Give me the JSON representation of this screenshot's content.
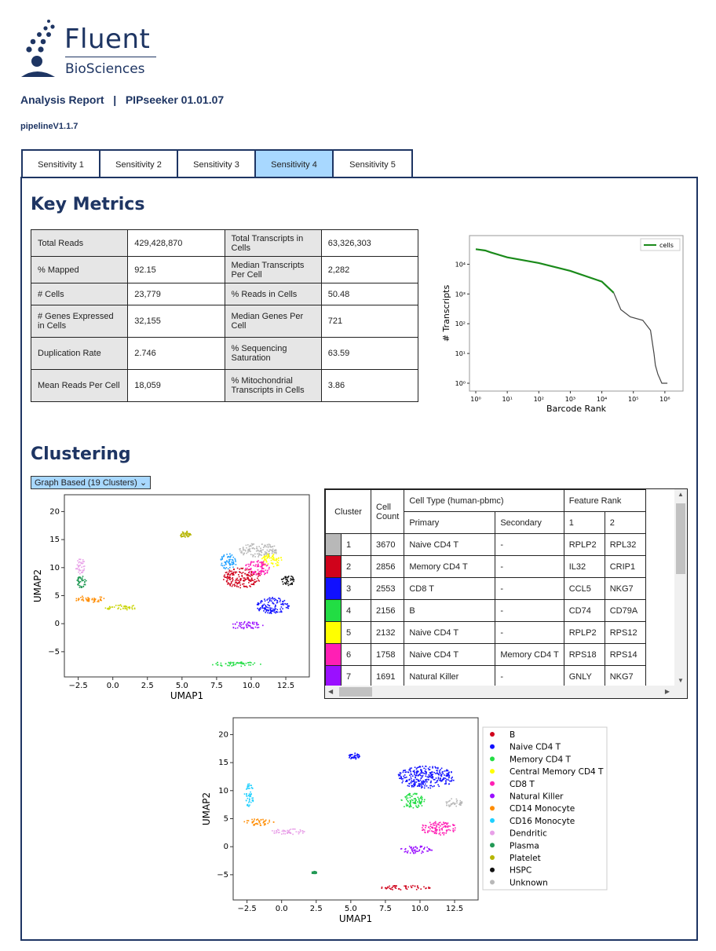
{
  "brand": {
    "name": "Fluent",
    "subtitle": "BioSciences"
  },
  "report": {
    "title": "Analysis Report   |   PIPseeker 01.01.07",
    "pipeline": "pipelineV1.1.7"
  },
  "tabs": [
    {
      "label": "Sensitivity 1",
      "active": false
    },
    {
      "label": "Sensitivity 2",
      "active": false
    },
    {
      "label": "Sensitivity 3",
      "active": false
    },
    {
      "label": "Sensitivity 4",
      "active": true
    },
    {
      "label": "Sensitivity 5",
      "active": false
    }
  ],
  "key_metrics": {
    "heading": "Key Metrics",
    "rows": [
      [
        {
          "label": "Total Reads",
          "value": "429,428,870"
        },
        {
          "label": "Total Transcripts in Cells",
          "value": "63,326,303"
        }
      ],
      [
        {
          "label": "% Mapped",
          "value": "92.15"
        },
        {
          "label": "Median Transcripts Per Cell",
          "value": "2,282"
        }
      ],
      [
        {
          "label": "# Cells",
          "value": "23,779"
        },
        {
          "label": "% Reads in Cells",
          "value": "50.48"
        }
      ],
      [
        {
          "label": "# Genes Expressed in Cells",
          "value": "32,155"
        },
        {
          "label": "Median Genes Per Cell",
          "value": "721"
        }
      ],
      [
        {
          "label": "Duplication Rate",
          "value": "2.746"
        },
        {
          "label": "% Sequencing Saturation",
          "value": "63.59"
        }
      ],
      [
        {
          "label": "Mean Reads Per Cell",
          "value": "18,059"
        },
        {
          "label": "% Mitochondrial Transcripts in Cells",
          "value": "3.86"
        }
      ]
    ]
  },
  "clustering": {
    "heading": "Clustering",
    "selector": "Graph Based (19 Clusters) ⌄",
    "table": {
      "headers": {
        "cluster": "Cluster",
        "count": "Cell Count",
        "cell_type": "Cell Type (human-pbmc)",
        "primary": "Primary",
        "secondary": "Secondary",
        "feature_rank": "Feature Rank",
        "rank1": "1",
        "rank2": "2"
      },
      "rows": [
        {
          "color": "#b8b8b8",
          "cluster": "1",
          "count": "3670",
          "primary": "Naive CD4 T",
          "secondary": "-",
          "f1": "RPLP2",
          "f2": "RPL32"
        },
        {
          "color": "#d0021b",
          "cluster": "2",
          "count": "2856",
          "primary": "Memory CD4 T",
          "secondary": "-",
          "f1": "IL32",
          "f2": "CRIP1"
        },
        {
          "color": "#1010ff",
          "cluster": "3",
          "count": "2553",
          "primary": "CD8 T",
          "secondary": "-",
          "f1": "CCL5",
          "f2": "NKG7"
        },
        {
          "color": "#22dd44",
          "cluster": "4",
          "count": "2156",
          "primary": "B",
          "secondary": "-",
          "f1": "CD74",
          "f2": "CD79A"
        },
        {
          "color": "#ffff00",
          "cluster": "5",
          "count": "2132",
          "primary": "Naive CD4 T",
          "secondary": "-",
          "f1": "RPLP2",
          "f2": "RPS12"
        },
        {
          "color": "#ff1fb4",
          "cluster": "6",
          "count": "1758",
          "primary": "Naive CD4 T",
          "secondary": "Memory CD4 T",
          "f1": "RPS18",
          "f2": "RPS14"
        },
        {
          "color": "#9a10ff",
          "cluster": "7",
          "count": "1691",
          "primary": "Natural Killer",
          "secondary": "-",
          "f1": "GNLY",
          "f2": "NKG7"
        }
      ]
    }
  },
  "chart_data": [
    {
      "type": "line",
      "xlabel": "Barcode Rank",
      "ylabel": "# Transcripts",
      "log_x": true,
      "log_y": true,
      "xlim": [
        1,
        1000000
      ],
      "ylim": [
        1,
        50000
      ],
      "x_ticks": [
        "10⁰",
        "10¹",
        "10²",
        "10³",
        "10⁴",
        "10⁵",
        "10⁶"
      ],
      "y_ticks": [
        "10⁰",
        "10¹",
        "10²",
        "10³",
        "10⁴"
      ],
      "legend": {
        "position": "top-right",
        "entries": [
          "cells"
        ]
      },
      "series": [
        {
          "name": "cells",
          "color": "#1a8a1a",
          "points": [
            [
              1,
              32000
            ],
            [
              2,
              29000
            ],
            [
              3,
              25000
            ],
            [
              10,
              17000
            ],
            [
              100,
              11000
            ],
            [
              1000,
              6000
            ],
            [
              10000,
              2600
            ],
            [
              23779,
              1100
            ]
          ]
        },
        {
          "color": "#444444",
          "points": [
            [
              23779,
              1100
            ],
            [
              40000,
              300
            ],
            [
              80000,
              170
            ],
            [
              200000,
              130
            ],
            [
              350000,
              60
            ],
            [
              450000,
              10
            ],
            [
              500000,
              4
            ],
            [
              600000,
              2
            ],
            [
              800000,
              1
            ],
            [
              1200000,
              1
            ]
          ]
        }
      ]
    },
    {
      "type": "scatter",
      "xlabel": "UMAP1",
      "ylabel": "UMAP2",
      "xlim": [
        -3.5,
        14.2
      ],
      "ylim": [
        -9.5,
        23
      ],
      "x_ticks": [
        "−2.5",
        "0.0",
        "2.5",
        "5.0",
        "7.5",
        "10.0",
        "12.5"
      ],
      "y_ticks": [
        "−5",
        "0",
        "5",
        "10",
        "15",
        "20"
      ],
      "clusters": [
        {
          "color": "#b8b8b8",
          "cx": 10.5,
          "cy": 13.2,
          "rx": 1.4,
          "ry": 1.3
        },
        {
          "color": "#d0021b",
          "cx": 9.3,
          "cy": 8.3,
          "rx": 1.4,
          "ry": 1.8
        },
        {
          "color": "#1010ff",
          "cx": 11.5,
          "cy": 3.3,
          "rx": 1.2,
          "ry": 1.5
        },
        {
          "color": "#22dd44",
          "cx": 8.8,
          "cy": -7.1,
          "rx": 1.9,
          "ry": 0.4
        },
        {
          "color": "#ffff00",
          "cx": 11.4,
          "cy": 11.4,
          "rx": 0.8,
          "ry": 1.2
        },
        {
          "color": "#ff1fb4",
          "cx": 10.4,
          "cy": 10.0,
          "rx": 0.9,
          "ry": 1.4
        },
        {
          "color": "#9a10ff",
          "cx": 9.6,
          "cy": -0.2,
          "rx": 1.2,
          "ry": 0.7
        },
        {
          "color": "#1fa0ff",
          "cx": 8.3,
          "cy": 11.2,
          "rx": 0.6,
          "ry": 1.5
        },
        {
          "color": "#ff8c00",
          "cx": -1.7,
          "cy": 4.5,
          "rx": 1.1,
          "ry": 0.6
        },
        {
          "color": "#e8a0e8",
          "cx": -2.4,
          "cy": 10.4,
          "rx": 0.35,
          "ry": 1.4
        },
        {
          "color": "#229955",
          "cx": -2.3,
          "cy": 7.6,
          "rx": 0.35,
          "ry": 1.1
        },
        {
          "color": "#c8d400",
          "cx": 0.6,
          "cy": 3.0,
          "rx": 1.2,
          "ry": 0.5
        },
        {
          "color": "#b5b500",
          "cx": 5.2,
          "cy": 16.0,
          "rx": 0.4,
          "ry": 0.6
        },
        {
          "color": "#111111",
          "cx": 12.6,
          "cy": 7.8,
          "rx": 0.5,
          "ry": 0.9
        }
      ]
    },
    {
      "type": "scatter",
      "xlabel": "UMAP1",
      "ylabel": "UMAP2",
      "xlim": [
        -3.5,
        14.2
      ],
      "ylim": [
        -9.5,
        23
      ],
      "x_ticks": [
        "−2.5",
        "0.0",
        "2.5",
        "5.0",
        "7.5",
        "10.0",
        "12.5"
      ],
      "y_ticks": [
        "−5",
        "0",
        "5",
        "10",
        "15",
        "20"
      ],
      "legend": {
        "position": "right",
        "entries": [
          {
            "name": "B",
            "color": "#d0021b"
          },
          {
            "name": "Naive CD4 T",
            "color": "#1010ff"
          },
          {
            "name": "Memory CD4 T",
            "color": "#22dd44"
          },
          {
            "name": "Central Memory CD4 T",
            "color": "#ffff00"
          },
          {
            "name": "CD8 T",
            "color": "#ff1fb4"
          },
          {
            "name": "Natural Killer",
            "color": "#9a10ff"
          },
          {
            "name": "CD14 Monocyte",
            "color": "#ff8c00"
          },
          {
            "name": "CD16 Monocyte",
            "color": "#1fd0ff"
          },
          {
            "name": "Dendritic",
            "color": "#e8a0e8"
          },
          {
            "name": "Plasma",
            "color": "#229955"
          },
          {
            "name": "Platelet",
            "color": "#b5b500"
          },
          {
            "name": "HSPC",
            "color": "#111111"
          },
          {
            "name": "Unknown",
            "color": "#b8b8b8"
          }
        ]
      },
      "clusters": [
        {
          "color": "#1010ff",
          "cx": 10.4,
          "cy": 12.5,
          "rx": 2.1,
          "ry": 2.0
        },
        {
          "color": "#22dd44",
          "cx": 9.4,
          "cy": 8.3,
          "rx": 0.9,
          "ry": 1.4
        },
        {
          "color": "#ff1fb4",
          "cx": 11.3,
          "cy": 3.4,
          "rx": 1.3,
          "ry": 1.2
        },
        {
          "color": "#9a10ff",
          "cx": 9.7,
          "cy": -0.4,
          "rx": 1.2,
          "ry": 0.7
        },
        {
          "color": "#d0021b",
          "cx": 8.8,
          "cy": -7.2,
          "rx": 1.9,
          "ry": 0.4
        },
        {
          "color": "#b8b8b8",
          "cx": 12.4,
          "cy": 7.9,
          "rx": 0.6,
          "ry": 0.8
        },
        {
          "color": "#ff8c00",
          "cx": -1.7,
          "cy": 4.5,
          "rx": 1.1,
          "ry": 0.6
        },
        {
          "color": "#1fd0ff",
          "cx": -2.4,
          "cy": 9.3,
          "rx": 0.35,
          "ry": 2.1
        },
        {
          "color": "#e8a0e8",
          "cx": 0.5,
          "cy": 2.8,
          "rx": 1.3,
          "ry": 0.5
        },
        {
          "color": "#1010ff",
          "cx": 5.2,
          "cy": 16.2,
          "rx": 0.4,
          "ry": 0.6
        },
        {
          "color": "#229955",
          "cx": 2.3,
          "cy": -4.5,
          "rx": 0.2,
          "ry": 0.2
        }
      ]
    }
  ]
}
